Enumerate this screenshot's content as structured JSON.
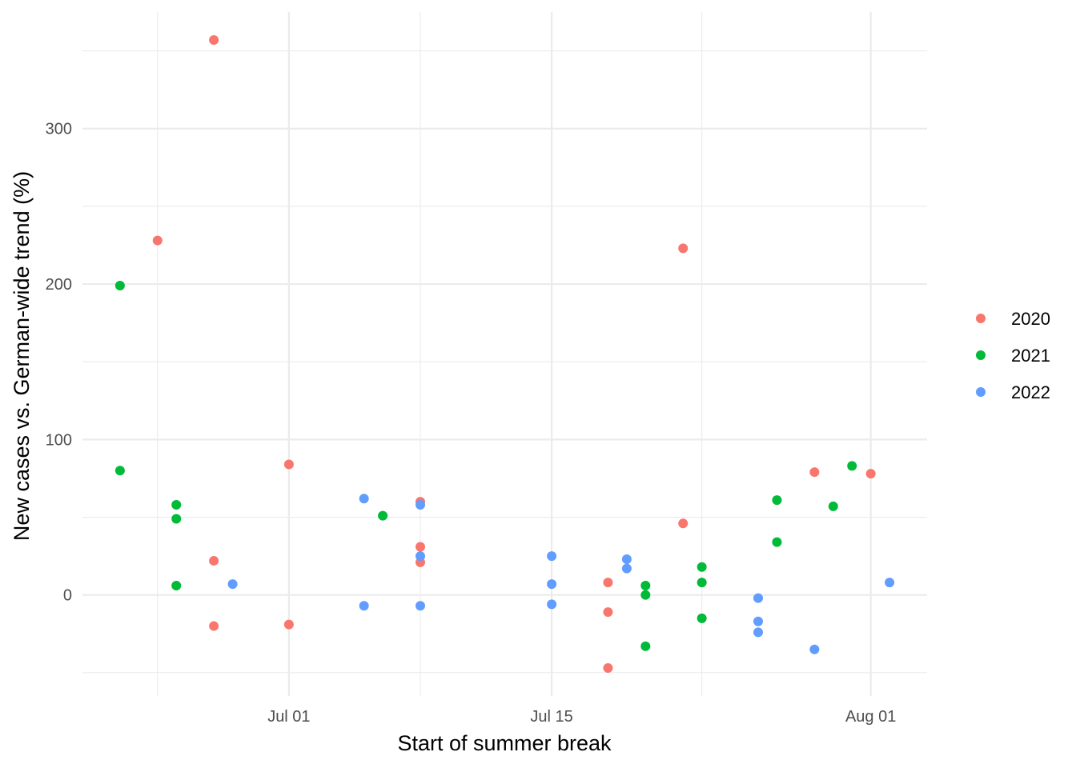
{
  "chart_data": {
    "type": "scatter",
    "title": "",
    "xlabel": "Start of summer break",
    "ylabel": "New cases vs. German-wide trend (%)",
    "x_axis": {
      "kind": "date",
      "range": [
        "2020-06-20",
        "2020-08-04"
      ],
      "major_ticks": [
        {
          "date": "2020-07-01",
          "label": "Jul 01"
        },
        {
          "date": "2020-07-15",
          "label": "Jul 15"
        },
        {
          "date": "2020-08-01",
          "label": "Aug 01"
        }
      ],
      "minor_ticks": [
        "2020-06-24",
        "2020-07-08",
        "2020-07-23"
      ]
    },
    "y_axis": {
      "range": [
        -65,
        375
      ],
      "major_ticks": [
        0,
        100,
        200,
        300
      ],
      "minor_ticks": [
        -50,
        50,
        150,
        250,
        350
      ]
    },
    "grid": true,
    "legend": {
      "placement": "right",
      "title": ""
    },
    "series": [
      {
        "name": "2020",
        "color": "#F8766D",
        "points": [
          {
            "x": "2020-06-24",
            "y": 228
          },
          {
            "x": "2020-06-27",
            "y": 357
          },
          {
            "x": "2020-06-27",
            "y": 22
          },
          {
            "x": "2020-06-27",
            "y": -20
          },
          {
            "x": "2020-07-01",
            "y": 84
          },
          {
            "x": "2020-07-01",
            "y": -19
          },
          {
            "x": "2020-07-08",
            "y": 60
          },
          {
            "x": "2020-07-08",
            "y": 31
          },
          {
            "x": "2020-07-08",
            "y": 21
          },
          {
            "x": "2020-07-18",
            "y": 8
          },
          {
            "x": "2020-07-18",
            "y": -11
          },
          {
            "x": "2020-07-18",
            "y": -47
          },
          {
            "x": "2020-07-22",
            "y": 223
          },
          {
            "x": "2020-07-22",
            "y": 46
          },
          {
            "x": "2020-07-29",
            "y": 79
          },
          {
            "x": "2020-08-01",
            "y": 78
          }
        ]
      },
      {
        "name": "2021",
        "color": "#00BA38",
        "points": [
          {
            "x": "2020-06-22",
            "y": 199
          },
          {
            "x": "2020-06-22",
            "y": 80
          },
          {
            "x": "2020-06-25",
            "y": 58
          },
          {
            "x": "2020-06-25",
            "y": 49
          },
          {
            "x": "2020-06-25",
            "y": 6
          },
          {
            "x": "2020-07-06",
            "y": 51
          },
          {
            "x": "2020-07-20",
            "y": 6
          },
          {
            "x": "2020-07-20",
            "y": 0
          },
          {
            "x": "2020-07-20",
            "y": -33
          },
          {
            "x": "2020-07-23",
            "y": 18
          },
          {
            "x": "2020-07-23",
            "y": 8
          },
          {
            "x": "2020-07-23",
            "y": -15
          },
          {
            "x": "2020-07-27",
            "y": 61
          },
          {
            "x": "2020-07-27",
            "y": 34
          },
          {
            "x": "2020-07-30",
            "y": 57
          },
          {
            "x": "2020-07-31",
            "y": 83
          }
        ]
      },
      {
        "name": "2022",
        "color": "#619CFF",
        "points": [
          {
            "x": "2020-06-28",
            "y": 7
          },
          {
            "x": "2020-07-05",
            "y": 62
          },
          {
            "x": "2020-07-05",
            "y": -7
          },
          {
            "x": "2020-07-08",
            "y": 58
          },
          {
            "x": "2020-07-08",
            "y": 25
          },
          {
            "x": "2020-07-08",
            "y": -7
          },
          {
            "x": "2020-07-15",
            "y": 25
          },
          {
            "x": "2020-07-15",
            "y": 7
          },
          {
            "x": "2020-07-15",
            "y": -6
          },
          {
            "x": "2020-07-19",
            "y": 23
          },
          {
            "x": "2020-07-19",
            "y": 17
          },
          {
            "x": "2020-07-26",
            "y": -2
          },
          {
            "x": "2020-07-26",
            "y": -17
          },
          {
            "x": "2020-07-26",
            "y": -24
          },
          {
            "x": "2020-07-29",
            "y": -35
          },
          {
            "x": "2020-08-02",
            "y": 8
          }
        ]
      }
    ]
  }
}
